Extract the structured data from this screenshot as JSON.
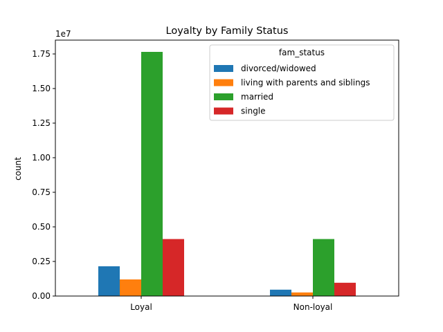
{
  "chart_data": {
    "type": "bar",
    "title": "Loyalty by Family Status",
    "xlabel": "",
    "ylabel": "count",
    "y_offset_label": "1e7",
    "categories": [
      "Loyal",
      "Non-loyal"
    ],
    "series": [
      {
        "name": "divorced/widowed",
        "color": "#1f77b4",
        "values": [
          2150000,
          460000
        ]
      },
      {
        "name": "living with parents and siblings",
        "color": "#ff7f0e",
        "values": [
          1200000,
          260000
        ]
      },
      {
        "name": "married",
        "color": "#2ca02c",
        "values": [
          17650000,
          4120000
        ]
      },
      {
        "name": "single",
        "color": "#d62728",
        "values": [
          4120000,
          960000
        ]
      }
    ],
    "ylim": [
      0,
      18500000
    ],
    "yticks": [
      0,
      2500000,
      5000000,
      7500000,
      10000000,
      12500000,
      15000000,
      17500000
    ],
    "ytick_labels": [
      "0.00",
      "0.25",
      "0.50",
      "0.75",
      "1.00",
      "1.25",
      "1.50",
      "1.75"
    ],
    "legend": {
      "title": "fam_status",
      "placement": "top-right"
    },
    "grid": false
  }
}
